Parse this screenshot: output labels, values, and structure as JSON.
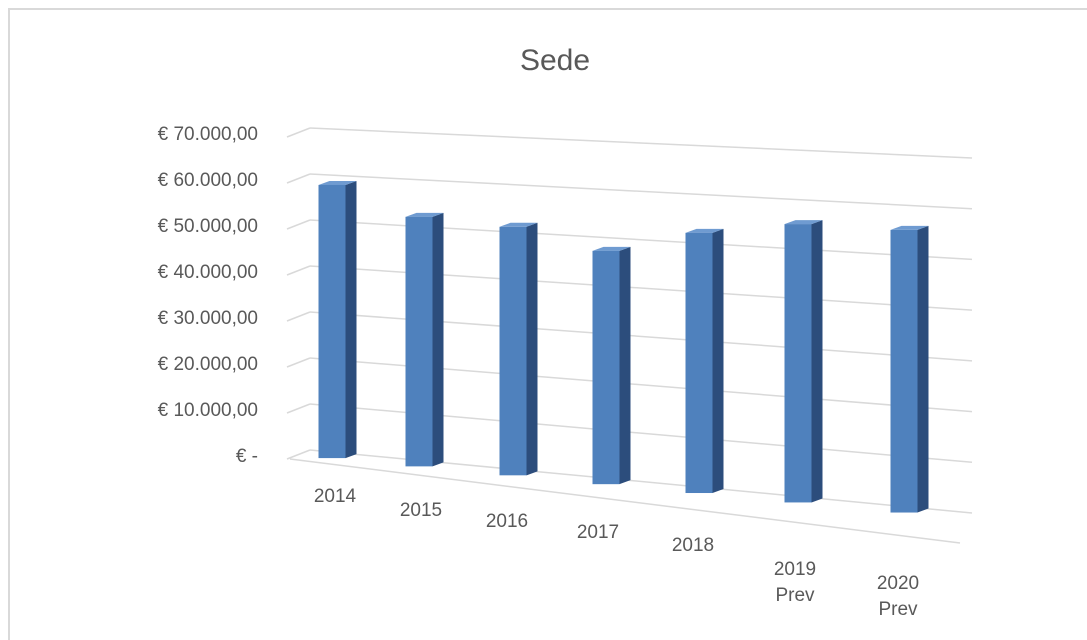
{
  "chart_data": {
    "type": "bar3d",
    "title": "Sede",
    "categories": [
      "2014",
      "2015",
      "2016",
      "2017",
      "2018",
      "2019 Prev",
      "2020 Prev"
    ],
    "values": [
      61000,
      55000,
      54000,
      50000,
      55000,
      58000,
      58000
    ],
    "color": "#4f81bd",
    "ylim": [
      0,
      70000
    ],
    "yticks": [
      {
        "value": 0,
        "label": "€ -"
      },
      {
        "value": 10000,
        "label": "€ 10.000,00"
      },
      {
        "value": 20000,
        "label": "€ 20.000,00"
      },
      {
        "value": 30000,
        "label": "€ 30.000,00"
      },
      {
        "value": 40000,
        "label": "€ 40.000,00"
      },
      {
        "value": 50000,
        "label": "€ 50.000,00"
      },
      {
        "value": 60000,
        "label": "€ 60.000,00"
      },
      {
        "value": 70000,
        "label": "€ 70.000,00"
      }
    ],
    "grid": true
  }
}
